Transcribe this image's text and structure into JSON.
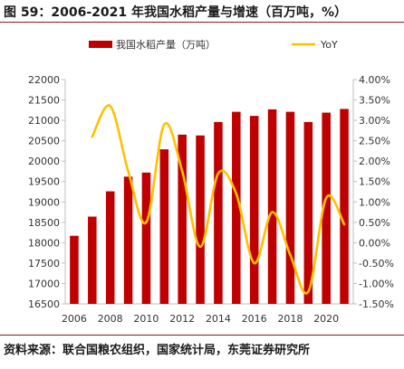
{
  "header": {
    "title": "图 59：2006-2021 年我国水稻产量与增速（百万吨，%）"
  },
  "footer": {
    "source": "资料来源：联合国粮农组织，国家统计局，东莞证券研究所"
  },
  "colors": {
    "bar": "#c00000",
    "line": "#ffc000",
    "rule": "#8a1c1c",
    "axis": "#bfbfbf"
  },
  "chart_data": {
    "type": "bar",
    "legend_position": "top",
    "x": [
      2006,
      2007,
      2008,
      2009,
      2010,
      2011,
      2012,
      2013,
      2014,
      2015,
      2016,
      2017,
      2018,
      2019,
      2020,
      2021
    ],
    "xticks": [
      "2006",
      "2008",
      "2010",
      "2012",
      "2014",
      "2016",
      "2018",
      "2020"
    ],
    "series": [
      {
        "name": "我国水稻产量（万吨）",
        "type": "bar",
        "axis": "left",
        "values": [
          18170,
          18640,
          19260,
          19620,
          19720,
          20290,
          20650,
          20630,
          20960,
          21210,
          21110,
          21270,
          21210,
          20960,
          21190,
          21280
        ]
      },
      {
        "name": "YoY",
        "type": "line",
        "axis": "right",
        "values": [
          null,
          2.6,
          3.35,
          1.75,
          0.5,
          2.9,
          1.75,
          -0.1,
          1.7,
          1.2,
          -0.5,
          0.75,
          -0.3,
          -1.2,
          1.1,
          0.45
        ]
      }
    ],
    "y_left": {
      "lim": [
        16500,
        22000
      ],
      "ticks": [
        "16500",
        "17000",
        "17500",
        "18000",
        "18500",
        "19000",
        "19500",
        "20000",
        "20500",
        "21000",
        "21500",
        "22000"
      ]
    },
    "y_right": {
      "lim": [
        -1.5,
        4.0
      ],
      "ticks": [
        "-1.50%",
        "-1.00%",
        "-0.50%",
        "0.00%",
        "0.50%",
        "1.00%",
        "1.50%",
        "2.00%",
        "2.50%",
        "3.00%",
        "3.50%",
        "4.00%"
      ]
    },
    "grid": false
  }
}
